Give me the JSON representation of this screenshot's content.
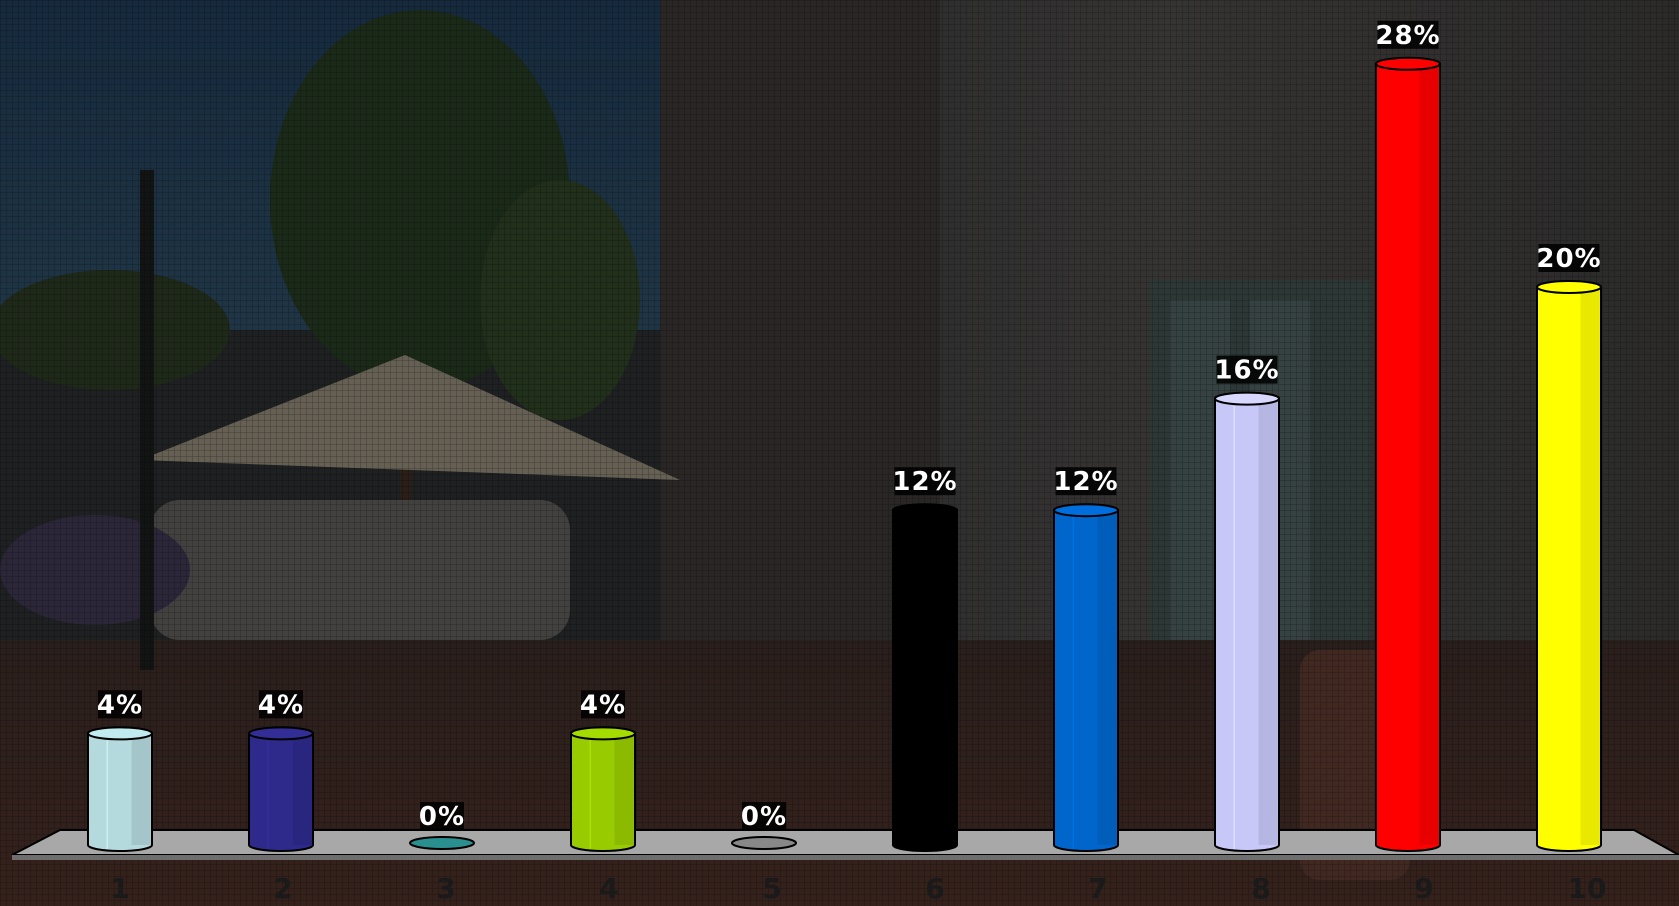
{
  "chart_data": {
    "type": "bar",
    "style": "3d-cylinder",
    "categories": [
      "1",
      "2",
      "3",
      "4",
      "5",
      "6",
      "7",
      "8",
      "9",
      "10"
    ],
    "values": [
      4,
      4,
      0,
      4,
      0,
      12,
      12,
      16,
      28,
      20
    ],
    "value_labels": [
      "4%",
      "4%",
      "0%",
      "4%",
      "0%",
      "12%",
      "12%",
      "16%",
      "28%",
      "20%"
    ],
    "colors": [
      "#b4dade",
      "#2e2a8c",
      "#2a8f8f",
      "#99cc00",
      "#888888",
      "#000000",
      "#0066cc",
      "#c8c8f8",
      "#ff0000",
      "#ffff00"
    ],
    "title": "",
    "xlabel": "",
    "ylabel": "",
    "ylim": [
      0,
      28
    ],
    "grid": false,
    "legend": "none",
    "background": "photo of a street with cafe umbrella and storefronts, overlaid with a dark mesh"
  }
}
